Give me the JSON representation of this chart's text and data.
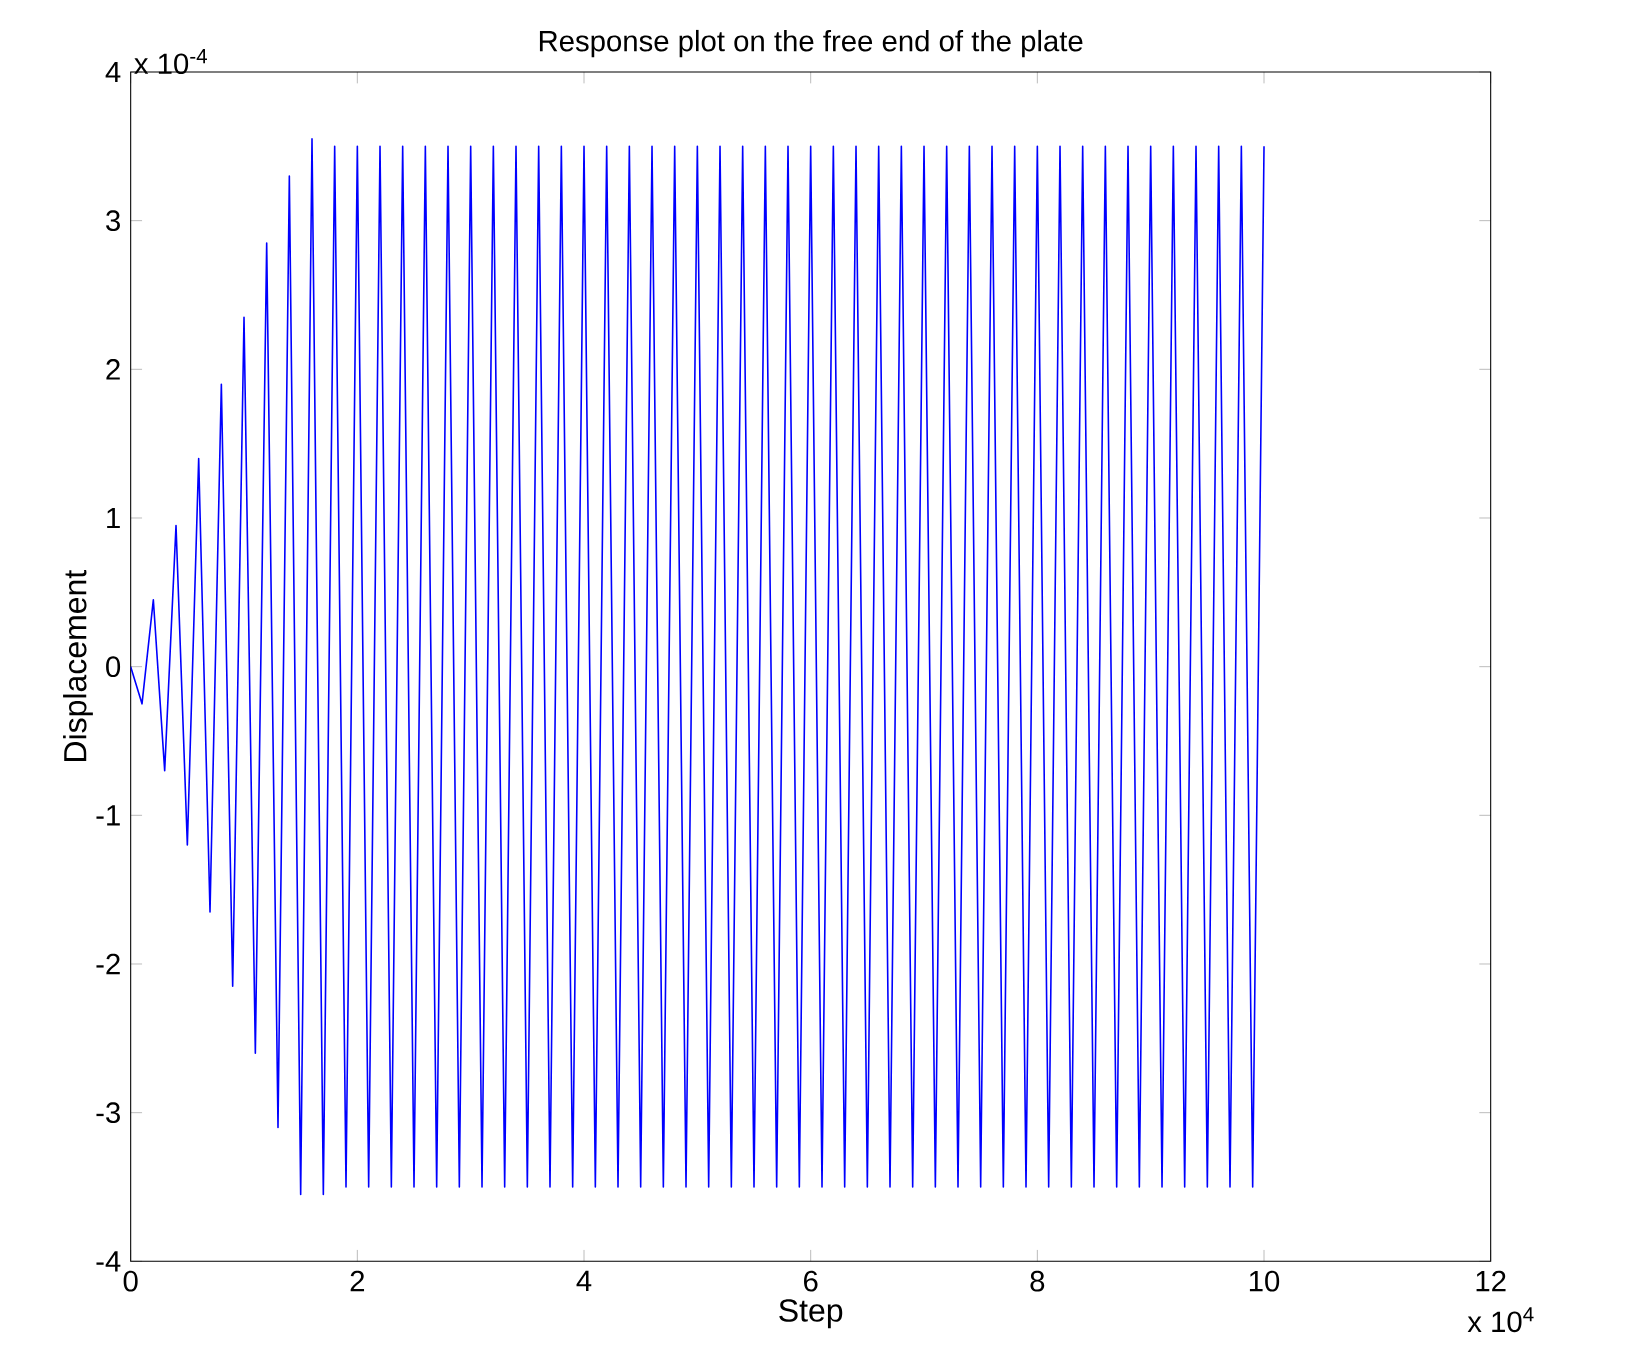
{
  "chart_data": {
    "type": "line",
    "title": "Response plot on the free end of the plate",
    "xlabel": "Step",
    "ylabel": "Displacement",
    "x": [
      0,
      0.1,
      0.2,
      0.3,
      0.4,
      0.5,
      0.6,
      0.7,
      0.8,
      0.9,
      1.0,
      1.1,
      1.2,
      1.3,
      1.4,
      1.5,
      1.6,
      1.7,
      1.8,
      1.9,
      2.0,
      2.1,
      2.2,
      2.3,
      2.4,
      2.5,
      2.6,
      2.7,
      2.8,
      2.9,
      3.0,
      3.1,
      3.2,
      3.3,
      3.4,
      3.5,
      3.6,
      3.7,
      3.8,
      3.9,
      4.0,
      4.1,
      4.2,
      4.3,
      4.4,
      4.5,
      4.6,
      4.7,
      4.8,
      4.9,
      5.0,
      5.1,
      5.2,
      5.3,
      5.4,
      5.5,
      5.6,
      5.7,
      5.8,
      5.9,
      6.0,
      6.1,
      6.2,
      6.3,
      6.4,
      6.5,
      6.6,
      6.7,
      6.8,
      6.9,
      7.0,
      7.1,
      7.2,
      7.3,
      7.4,
      7.5,
      7.6,
      7.7,
      7.8,
      7.9,
      8.0,
      8.1,
      8.2,
      8.3,
      8.4,
      8.5,
      8.6,
      8.7,
      8.8,
      8.9,
      9.0,
      9.1,
      9.2,
      9.3,
      9.4,
      9.5,
      9.6,
      9.7,
      9.8,
      9.9,
      10.0
    ],
    "series": [
      {
        "color": "#0000ff",
        "values": [
          0,
          -0.25,
          0.45,
          -0.7,
          0.95,
          -1.2,
          1.4,
          -1.65,
          1.9,
          -2.15,
          2.35,
          -2.6,
          2.85,
          -3.1,
          3.3,
          -3.55,
          3.55,
          -3.55,
          3.5,
          -3.5,
          3.5,
          -3.5,
          3.5,
          -3.5,
          3.5,
          -3.5,
          3.5,
          -3.5,
          3.5,
          -3.5,
          3.5,
          -3.5,
          3.5,
          -3.5,
          3.5,
          -3.5,
          3.5,
          -3.5,
          3.5,
          -3.5,
          3.5,
          -3.5,
          3.5,
          -3.5,
          3.5,
          -3.5,
          3.5,
          -3.5,
          3.5,
          -3.5,
          3.5,
          -3.5,
          3.5,
          -3.5,
          3.5,
          -3.5,
          3.5,
          -3.5,
          3.5,
          -3.5,
          3.5,
          -3.5,
          3.5,
          -3.5,
          3.5,
          -3.5,
          3.5,
          -3.5,
          3.5,
          -3.5,
          3.5,
          -3.5,
          3.5,
          -3.5,
          3.5,
          -3.5,
          3.5,
          -3.5,
          3.5,
          -3.5,
          3.5,
          -3.5,
          3.5,
          -3.5,
          3.5,
          -3.5,
          3.5,
          -3.5,
          3.5,
          -3.5,
          3.5,
          -3.5,
          3.5,
          -3.5,
          3.5,
          -3.5,
          3.5,
          -3.5,
          3.5,
          -3.5,
          3.5
        ]
      }
    ],
    "xlim": [
      0,
      12
    ],
    "ylim": [
      -4,
      4
    ],
    "xticks": [
      0,
      2,
      4,
      6,
      8,
      10,
      12
    ],
    "yticks": [
      -4,
      -3,
      -2,
      -1,
      0,
      1,
      2,
      3,
      4
    ],
    "annotations": [
      "x 10$^{-4}$",
      "x 10$^{4}$"
    ]
  }
}
